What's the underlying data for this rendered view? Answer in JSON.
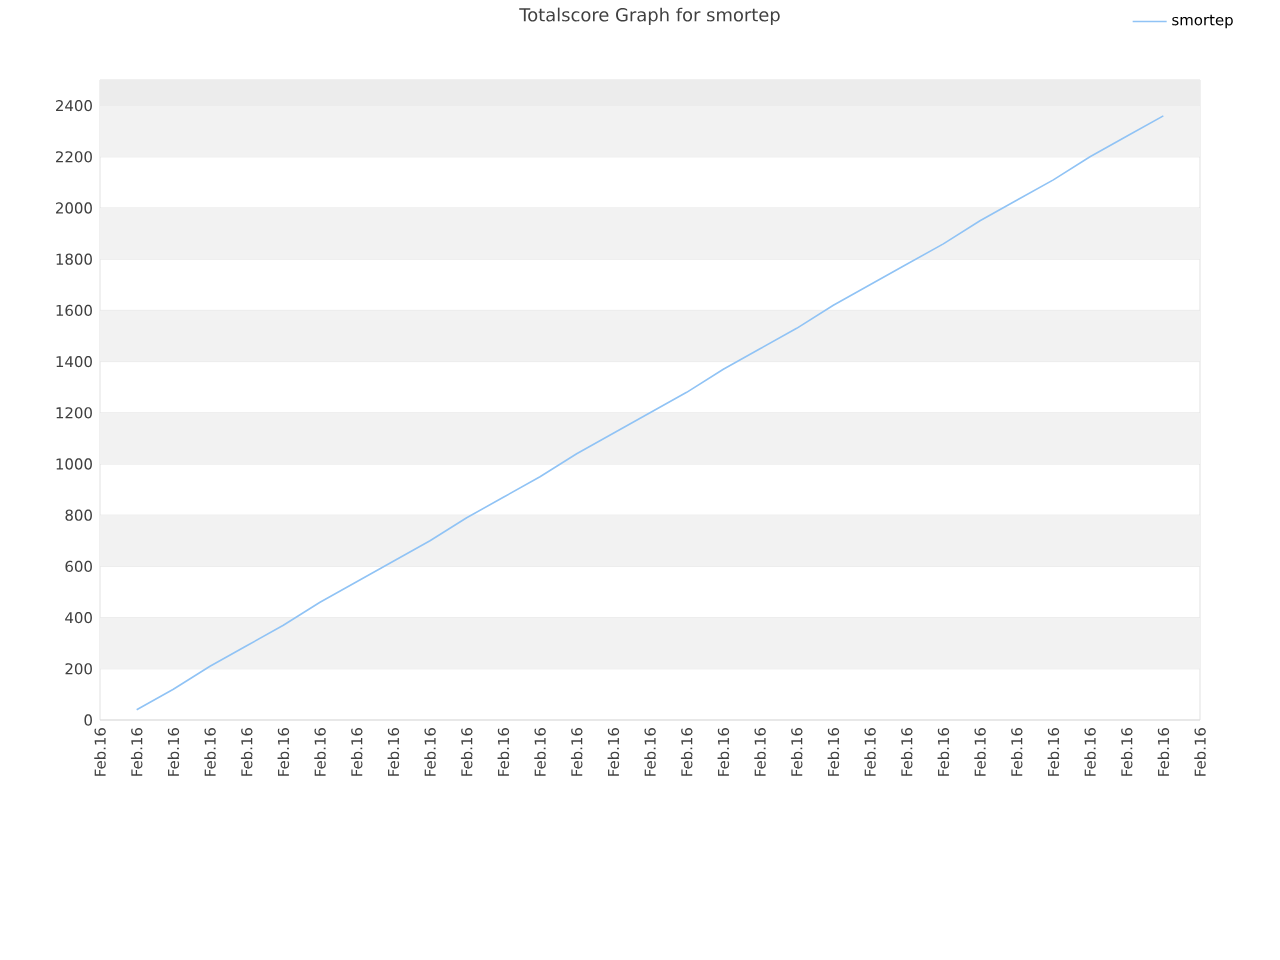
{
  "chart_data": {
    "type": "line",
    "title": "Totalscore Graph for smortep",
    "categories": [
      "Feb.16",
      "Feb.16",
      "Feb.16",
      "Feb.16",
      "Feb.16",
      "Feb.16",
      "Feb.16",
      "Feb.16",
      "Feb.16",
      "Feb.16",
      "Feb.16",
      "Feb.16",
      "Feb.16",
      "Feb.16",
      "Feb.16",
      "Feb.16",
      "Feb.16",
      "Feb.16",
      "Feb.16",
      "Feb.16",
      "Feb.16",
      "Feb.16",
      "Feb.16",
      "Feb.16",
      "Feb.16",
      "Feb.16",
      "Feb.16",
      "Feb.16",
      "Feb.16",
      "Feb.16",
      "Feb.16"
    ],
    "series": [
      {
        "name": "smortep",
        "color": "#90c3f5",
        "values": [
          null,
          40,
          120,
          210,
          290,
          370,
          460,
          540,
          620,
          700,
          790,
          870,
          950,
          1040,
          1120,
          1200,
          1280,
          1370,
          1450,
          1530,
          1620,
          1700,
          1780,
          1860,
          1950,
          2030,
          2110,
          2200,
          2280,
          2360,
          null
        ]
      }
    ],
    "ylim": [
      0,
      2500
    ],
    "yticks": [
      0,
      200,
      400,
      600,
      800,
      1000,
      1200,
      1400,
      1600,
      1800,
      2000,
      2200,
      2400
    ],
    "bands": [
      {
        "axis": "y",
        "from": 200,
        "to": 400,
        "color": "#f2f2f2"
      },
      {
        "axis": "y",
        "from": 600,
        "to": 800,
        "color": "#f2f2f2"
      },
      {
        "axis": "y",
        "from": 1000,
        "to": 1200,
        "color": "#f2f2f2"
      },
      {
        "axis": "y",
        "from": 1400,
        "to": 1600,
        "color": "#f2f2f2"
      },
      {
        "axis": "y",
        "from": 1800,
        "to": 2000,
        "color": "#f2f2f2"
      },
      {
        "axis": "y",
        "from": 2200,
        "to": 2400,
        "color": "#f2f2f2"
      },
      {
        "axis": "y",
        "from": 2400,
        "to": 2500,
        "color": "#ececec"
      }
    ],
    "grid": "y",
    "legend": "top right",
    "marker": "none",
    "line_style": "solid"
  }
}
